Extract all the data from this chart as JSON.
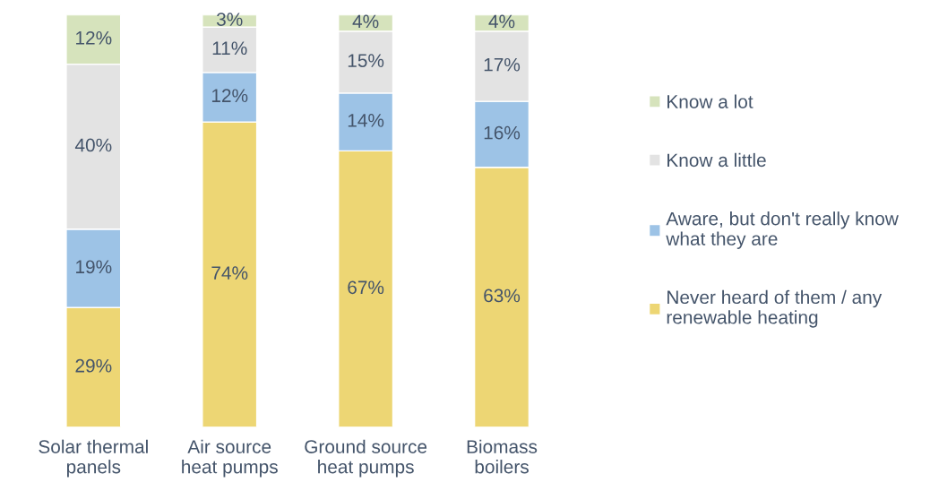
{
  "chart_data": {
    "type": "bar",
    "stacked": true,
    "categories": [
      "Solar thermal\npanels",
      "Air source\nheat pumps",
      "Ground source\nheat pumps",
      "Biomass\nboilers"
    ],
    "series": [
      {
        "name": "Never heard of them / any\nrenewable heating",
        "color": "#edd674",
        "values": [
          29,
          74,
          67,
          63
        ],
        "value_labels": [
          "29%",
          "74%",
          "67%",
          "63%"
        ]
      },
      {
        "name": "Aware, but don't really know\nwhat they are",
        "color": "#9dc3e6",
        "values": [
          19,
          12,
          14,
          16
        ],
        "value_labels": [
          "19%",
          "12%",
          "14%",
          "16%"
        ]
      },
      {
        "name": "Know a little",
        "color": "#e3e3e3",
        "values": [
          40,
          11,
          15,
          17
        ],
        "value_labels": [
          "40%",
          "11%",
          "15%",
          "17%"
        ]
      },
      {
        "name": "Know a lot",
        "color": "#d6e3bc",
        "values": [
          12,
          3,
          4,
          4
        ],
        "value_labels": [
          "12%",
          "3%",
          "4%",
          "4%"
        ]
      }
    ],
    "legend": "right",
    "grid": false
  }
}
